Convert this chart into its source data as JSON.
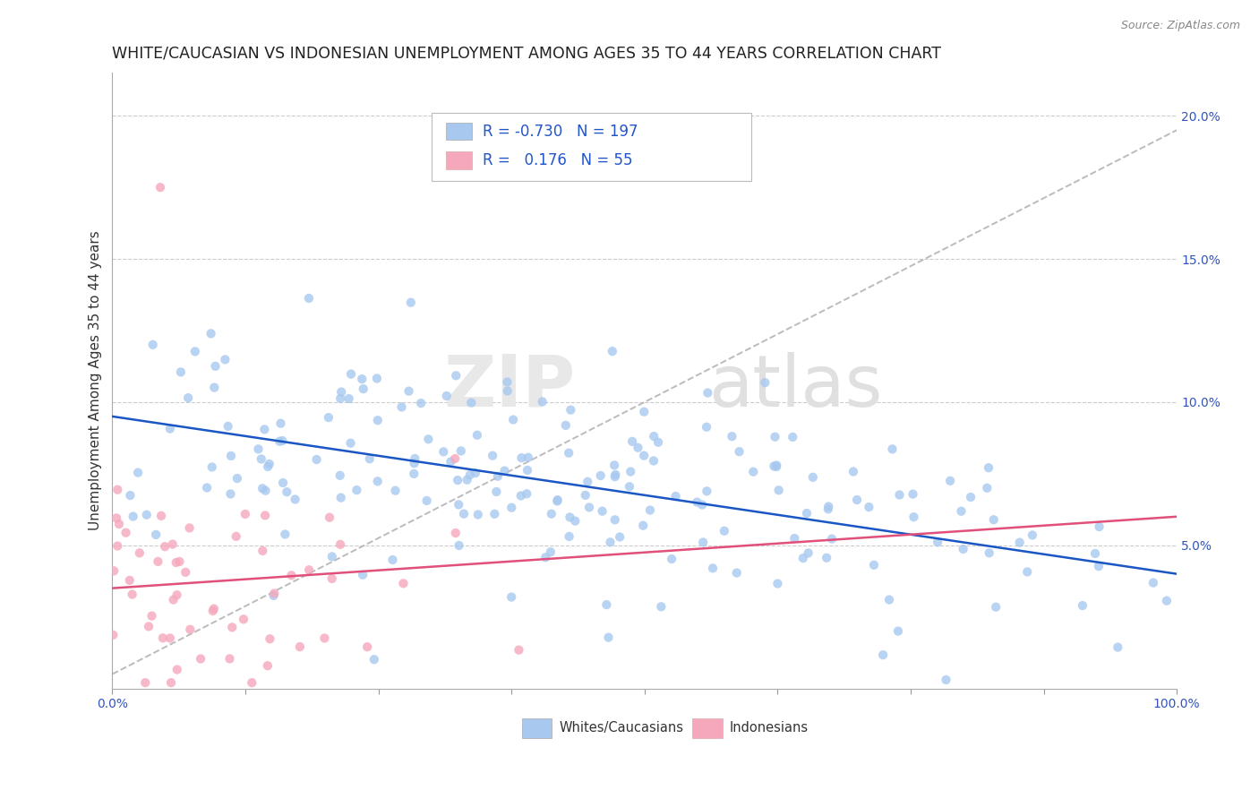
{
  "title": "WHITE/CAUCASIAN VS INDONESIAN UNEMPLOYMENT AMONG AGES 35 TO 44 YEARS CORRELATION CHART",
  "source": "Source: ZipAtlas.com",
  "ylabel": "Unemployment Among Ages 35 to 44 years",
  "xlim": [
    0,
    100
  ],
  "ylim": [
    0,
    21.5
  ],
  "yticks": [
    5,
    10,
    15,
    20
  ],
  "ytick_labels": [
    "5.0%",
    "10.0%",
    "15.0%",
    "20.0%"
  ],
  "xtick_labels_show": [
    "0.0%",
    "100.0%"
  ],
  "blue_color": "#A8C8F0",
  "pink_color": "#F5A8BC",
  "blue_line_color": "#1A56C4",
  "pink_line_color": "#E0507A",
  "legend_r_blue": "-0.730",
  "legend_n_blue": "197",
  "legend_r_pink": "0.176",
  "legend_n_pink": "55",
  "legend_label_blue": "Whites/Caucasians",
  "legend_label_pink": "Indonesians",
  "watermark_zip": "ZIP",
  "watermark_atlas": "atlas",
  "blue_seed": 42,
  "pink_seed": 7,
  "background_color": "#FFFFFF",
  "grid_color": "#CCCCCC",
  "title_fontsize": 12.5,
  "axis_label_fontsize": 11,
  "tick_fontsize": 10,
  "legend_value_color": "#2255CC"
}
